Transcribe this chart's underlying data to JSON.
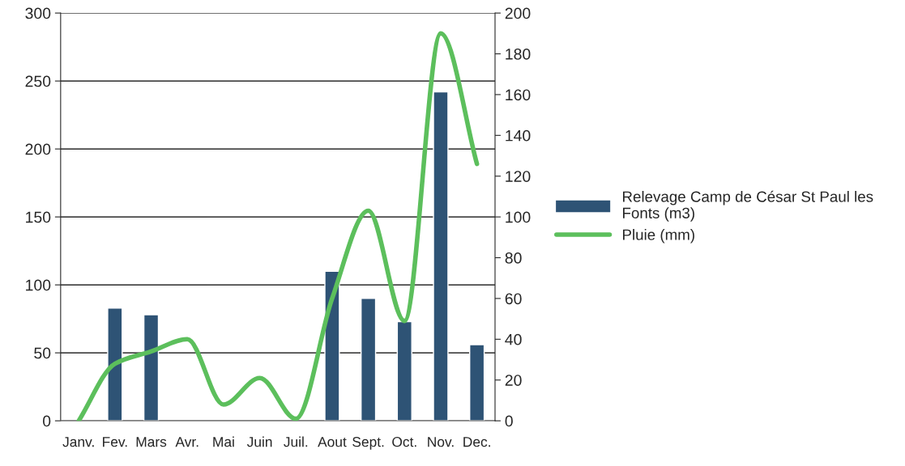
{
  "chart_data": {
    "type": "bar",
    "categories": [
      "Janv.",
      "Fev.",
      "Mars",
      "Avr.",
      "Mai",
      "Juin",
      "Juil.",
      "Aout",
      "Sept.",
      "Oct.",
      "Nov.",
      "Dec."
    ],
    "series": [
      {
        "name": "Relevage Camp de César St Paul les Fonts (m3)",
        "color": "#2e5375",
        "values": [
          null,
          83,
          78,
          null,
          null,
          null,
          null,
          110,
          90,
          73,
          242,
          56
        ]
      },
      {
        "name": "Pluie (mm)",
        "type": "line",
        "axis": "y2",
        "color": "#5cbf5c",
        "values": [
          0,
          28,
          34,
          40,
          8,
          21,
          1,
          60,
          103,
          49,
          190,
          126
        ]
      }
    ],
    "ylim": [
      0,
      300
    ],
    "yticks": [
      0,
      50,
      100,
      150,
      200,
      250,
      300
    ],
    "y2lim": [
      0,
      200
    ],
    "y2ticks": [
      0,
      20,
      40,
      60,
      80,
      100,
      120,
      140,
      160,
      180,
      200
    ],
    "grid": "y",
    "legend": "right"
  }
}
